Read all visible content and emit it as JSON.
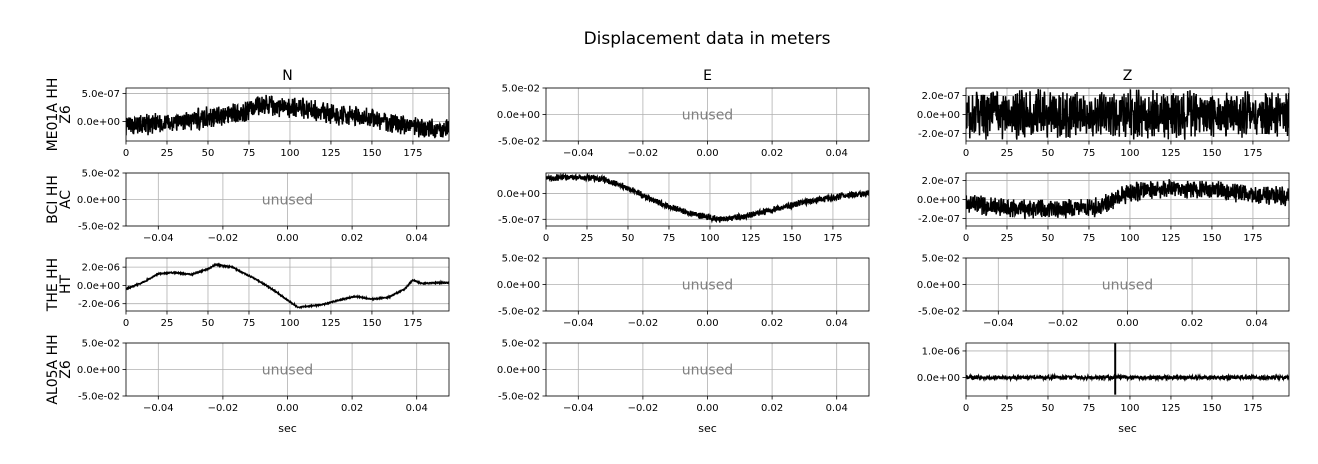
{
  "figure": {
    "title": "Displacement data in meters",
    "columns": [
      "N",
      "E",
      "Z"
    ],
    "rows": [
      {
        "network": "Z6",
        "station": "ME01A HH"
      },
      {
        "network": "AC",
        "station": "BCI HH"
      },
      {
        "network": "HT",
        "station": "THE HH"
      },
      {
        "network": "Z6",
        "station": "AL05A HH"
      }
    ],
    "xlabel": "sec",
    "unused_text": "unused"
  },
  "chart_data": [
    {
      "type": "line",
      "row": 0,
      "col": 0,
      "status": "data",
      "series_color": "#000000",
      "grid": true,
      "xlim": [
        0,
        197
      ],
      "ylim": [
        -3.5e-07,
        6e-07
      ],
      "xticks": [
        0,
        25,
        50,
        75,
        100,
        125,
        150,
        175
      ],
      "xtick_labels": [
        "0",
        "25",
        "50",
        "75",
        "100",
        "125",
        "150",
        "175"
      ],
      "yticks": [
        0,
        5e-07
      ],
      "ytick_labels": [
        "0.0e+00",
        "5.0e-07"
      ],
      "x": [
        0,
        15,
        30,
        45,
        60,
        70,
        80,
        85,
        90,
        100,
        110,
        120,
        130,
        140,
        150,
        160,
        175,
        190,
        197
      ],
      "y": [
        -1e-07,
        -5e-08,
        0,
        5e-08,
        1.2e-07,
        1.6e-07,
        2.5e-07,
        3e-07,
        2.8e-07,
        2.5e-07,
        2.2e-07,
        1.6e-07,
        1e-07,
        1e-07,
        5e-08,
        -2e-08,
        -1e-07,
        -1.5e-07,
        -1e-07
      ],
      "noise_amplitude": 1.5e-07
    },
    {
      "type": "line",
      "row": 0,
      "col": 1,
      "status": "unused",
      "grid": true,
      "xlim": [
        -0.05,
        0.05
      ],
      "ylim": [
        -0.05,
        0.05
      ],
      "xticks": [
        -0.04,
        -0.02,
        0,
        0.02,
        0.04
      ],
      "xtick_labels": [
        "−0.04",
        "−0.02",
        "0.00",
        "0.02",
        "0.04"
      ],
      "yticks": [
        -0.05,
        0,
        0.05
      ],
      "ytick_labels": [
        "-5.0e-02",
        "0.0e+00",
        "5.0e-02"
      ]
    },
    {
      "type": "line",
      "row": 0,
      "col": 2,
      "status": "data",
      "series_color": "#000000",
      "grid": true,
      "xlim": [
        0,
        197
      ],
      "ylim": [
        -2.8e-07,
        2.8e-07
      ],
      "xticks": [
        0,
        25,
        50,
        75,
        100,
        125,
        150,
        175
      ],
      "xtick_labels": [
        "0",
        "25",
        "50",
        "75",
        "100",
        "125",
        "150",
        "175"
      ],
      "yticks": [
        -2e-07,
        0,
        2e-07
      ],
      "ytick_labels": [
        "-2.0e-07",
        "0.0e+00",
        "2.0e-07"
      ],
      "x": [
        0,
        197
      ],
      "y": [
        0,
        0
      ],
      "noise_amplitude": 2e-07
    },
    {
      "type": "line",
      "row": 1,
      "col": 0,
      "status": "unused",
      "grid": true,
      "xlim": [
        -0.05,
        0.05
      ],
      "ylim": [
        -0.05,
        0.05
      ],
      "xticks": [
        -0.04,
        -0.02,
        0,
        0.02,
        0.04
      ],
      "xtick_labels": [
        "−0.04",
        "−0.02",
        "0.00",
        "0.02",
        "0.04"
      ],
      "yticks": [
        -0.05,
        0,
        0.05
      ],
      "ytick_labels": [
        "-5.0e-02",
        "0.0e+00",
        "5.0e-02"
      ]
    },
    {
      "type": "line",
      "row": 1,
      "col": 1,
      "status": "data",
      "series_color": "#000000",
      "grid": true,
      "xlim": [
        0,
        197
      ],
      "ylim": [
        -6.3e-07,
        4e-07
      ],
      "xticks": [
        0,
        25,
        50,
        75,
        100,
        125,
        150,
        175
      ],
      "xtick_labels": [
        "0",
        "25",
        "50",
        "75",
        "100",
        "125",
        "150",
        "175"
      ],
      "yticks": [
        -5e-07,
        0
      ],
      "ytick_labels": [
        "-5.0e-07",
        "0.0e+00"
      ],
      "x": [
        0,
        20,
        35,
        50,
        70,
        90,
        105,
        120,
        140,
        160,
        180,
        197
      ],
      "y": [
        3e-07,
        3.2e-07,
        2.8e-07,
        1e-07,
        -2e-07,
        -4e-07,
        -5e-07,
        -4.5e-07,
        -3e-07,
        -1.5e-07,
        -5e-08,
        0
      ],
      "noise_amplitude": 5e-08
    },
    {
      "type": "line",
      "row": 1,
      "col": 2,
      "status": "data",
      "series_color": "#000000",
      "grid": true,
      "xlim": [
        0,
        197
      ],
      "ylim": [
        -2.8e-07,
        2.8e-07
      ],
      "xticks": [
        0,
        25,
        50,
        75,
        100,
        125,
        150,
        175
      ],
      "xtick_labels": [
        "0",
        "25",
        "50",
        "75",
        "100",
        "125",
        "150",
        "175"
      ],
      "yticks": [
        -2e-07,
        0,
        2e-07
      ],
      "ytick_labels": [
        "-2.0e-07",
        "0.0e+00",
        "2.0e-07"
      ],
      "x": [
        0,
        30,
        60,
        80,
        95,
        110,
        125,
        150,
        175,
        197
      ],
      "y": [
        -5e-08,
        -1e-07,
        -1e-07,
        -8e-08,
        5e-08,
        1e-07,
        1.2e-07,
        1e-07,
        5e-08,
        3e-08
      ],
      "noise_amplitude": 8e-08
    },
    {
      "type": "line",
      "row": 2,
      "col": 0,
      "status": "data",
      "series_color": "#000000",
      "grid": true,
      "xlim": [
        0,
        197
      ],
      "ylim": [
        -2.8e-06,
        3e-06
      ],
      "xticks": [
        0,
        25,
        50,
        75,
        100,
        125,
        150,
        175
      ],
      "xtick_labels": [
        "0",
        "25",
        "50",
        "75",
        "100",
        "125",
        "150",
        "175"
      ],
      "yticks": [
        -2e-06,
        0,
        2e-06
      ],
      "ytick_labels": [
        "-2.0e-06",
        "0.0e+00",
        "2.0e-06"
      ],
      "x": [
        0,
        10,
        20,
        30,
        40,
        50,
        55,
        60,
        65,
        70,
        80,
        90,
        100,
        105,
        110,
        120,
        130,
        140,
        150,
        160,
        170,
        175,
        180,
        190,
        197
      ],
      "y": [
        -4e-07,
        3e-07,
        1.3e-06,
        1.4e-06,
        1.2e-06,
        1.8e-06,
        2.3e-06,
        2.1e-06,
        2e-06,
        1.5e-06,
        6e-07,
        -5e-07,
        -1.8e-06,
        -2.4e-06,
        -2.3e-06,
        -2.1e-06,
        -1.6e-06,
        -1.2e-06,
        -1.5e-06,
        -1.3e-06,
        -4e-07,
        6e-07,
        2e-07,
        3e-07,
        3e-07
      ],
      "noise_amplitude": 6e-08
    },
    {
      "type": "line",
      "row": 2,
      "col": 1,
      "status": "unused",
      "grid": true,
      "xlim": [
        -0.05,
        0.05
      ],
      "ylim": [
        -0.05,
        0.05
      ],
      "xticks": [
        -0.04,
        -0.02,
        0,
        0.02,
        0.04
      ],
      "xtick_labels": [
        "−0.04",
        "−0.02",
        "0.00",
        "0.02",
        "0.04"
      ],
      "yticks": [
        -0.05,
        0,
        0.05
      ],
      "ytick_labels": [
        "-5.0e-02",
        "0.0e+00",
        "5.0e-02"
      ]
    },
    {
      "type": "line",
      "row": 2,
      "col": 2,
      "status": "unused",
      "grid": true,
      "xlim": [
        -0.05,
        0.05
      ],
      "ylim": [
        -0.05,
        0.05
      ],
      "xticks": [
        -0.04,
        -0.02,
        0,
        0.02,
        0.04
      ],
      "xtick_labels": [
        "−0.04",
        "−0.02",
        "0.00",
        "0.02",
        "0.04"
      ],
      "yticks": [
        -0.05,
        0,
        0.05
      ],
      "ytick_labels": [
        "-5.0e-02",
        "0.0e+00",
        "5.0e-02"
      ]
    },
    {
      "type": "line",
      "row": 3,
      "col": 0,
      "status": "unused",
      "grid": true,
      "xlim": [
        -0.05,
        0.05
      ],
      "ylim": [
        -0.05,
        0.05
      ],
      "xticks": [
        -0.04,
        -0.02,
        0,
        0.02,
        0.04
      ],
      "xtick_labels": [
        "−0.04",
        "−0.02",
        "0.00",
        "0.02",
        "0.04"
      ],
      "yticks": [
        -0.05,
        0,
        0.05
      ],
      "ytick_labels": [
        "-5.0e-02",
        "0.0e+00",
        "5.0e-02"
      ]
    },
    {
      "type": "line",
      "row": 3,
      "col": 1,
      "status": "unused",
      "grid": true,
      "xlim": [
        -0.05,
        0.05
      ],
      "ylim": [
        -0.05,
        0.05
      ],
      "xticks": [
        -0.04,
        -0.02,
        0,
        0.02,
        0.04
      ],
      "xtick_labels": [
        "−0.04",
        "−0.02",
        "0.00",
        "0.02",
        "0.04"
      ],
      "yticks": [
        -0.05,
        0,
        0.05
      ],
      "ytick_labels": [
        "-5.0e-02",
        "0.0e+00",
        "5.0e-02"
      ]
    },
    {
      "type": "line",
      "row": 3,
      "col": 2,
      "status": "data",
      "series_color": "#000000",
      "grid": true,
      "xlim": [
        0,
        197
      ],
      "ylim": [
        -7e-07,
        1.3e-06
      ],
      "xticks": [
        0,
        25,
        50,
        75,
        100,
        125,
        150,
        175
      ],
      "xtick_labels": [
        "0",
        "25",
        "50",
        "75",
        "100",
        "125",
        "150",
        "175"
      ],
      "yticks": [
        0,
        1e-06
      ],
      "ytick_labels": [
        "0.0e+00",
        "1.0e-06"
      ],
      "x": [
        0,
        197
      ],
      "y": [
        0,
        0
      ],
      "noise_amplitude": 6e-08,
      "spike": {
        "x": 91,
        "min": -6.5e-07,
        "max": 1.3e-06
      }
    }
  ]
}
